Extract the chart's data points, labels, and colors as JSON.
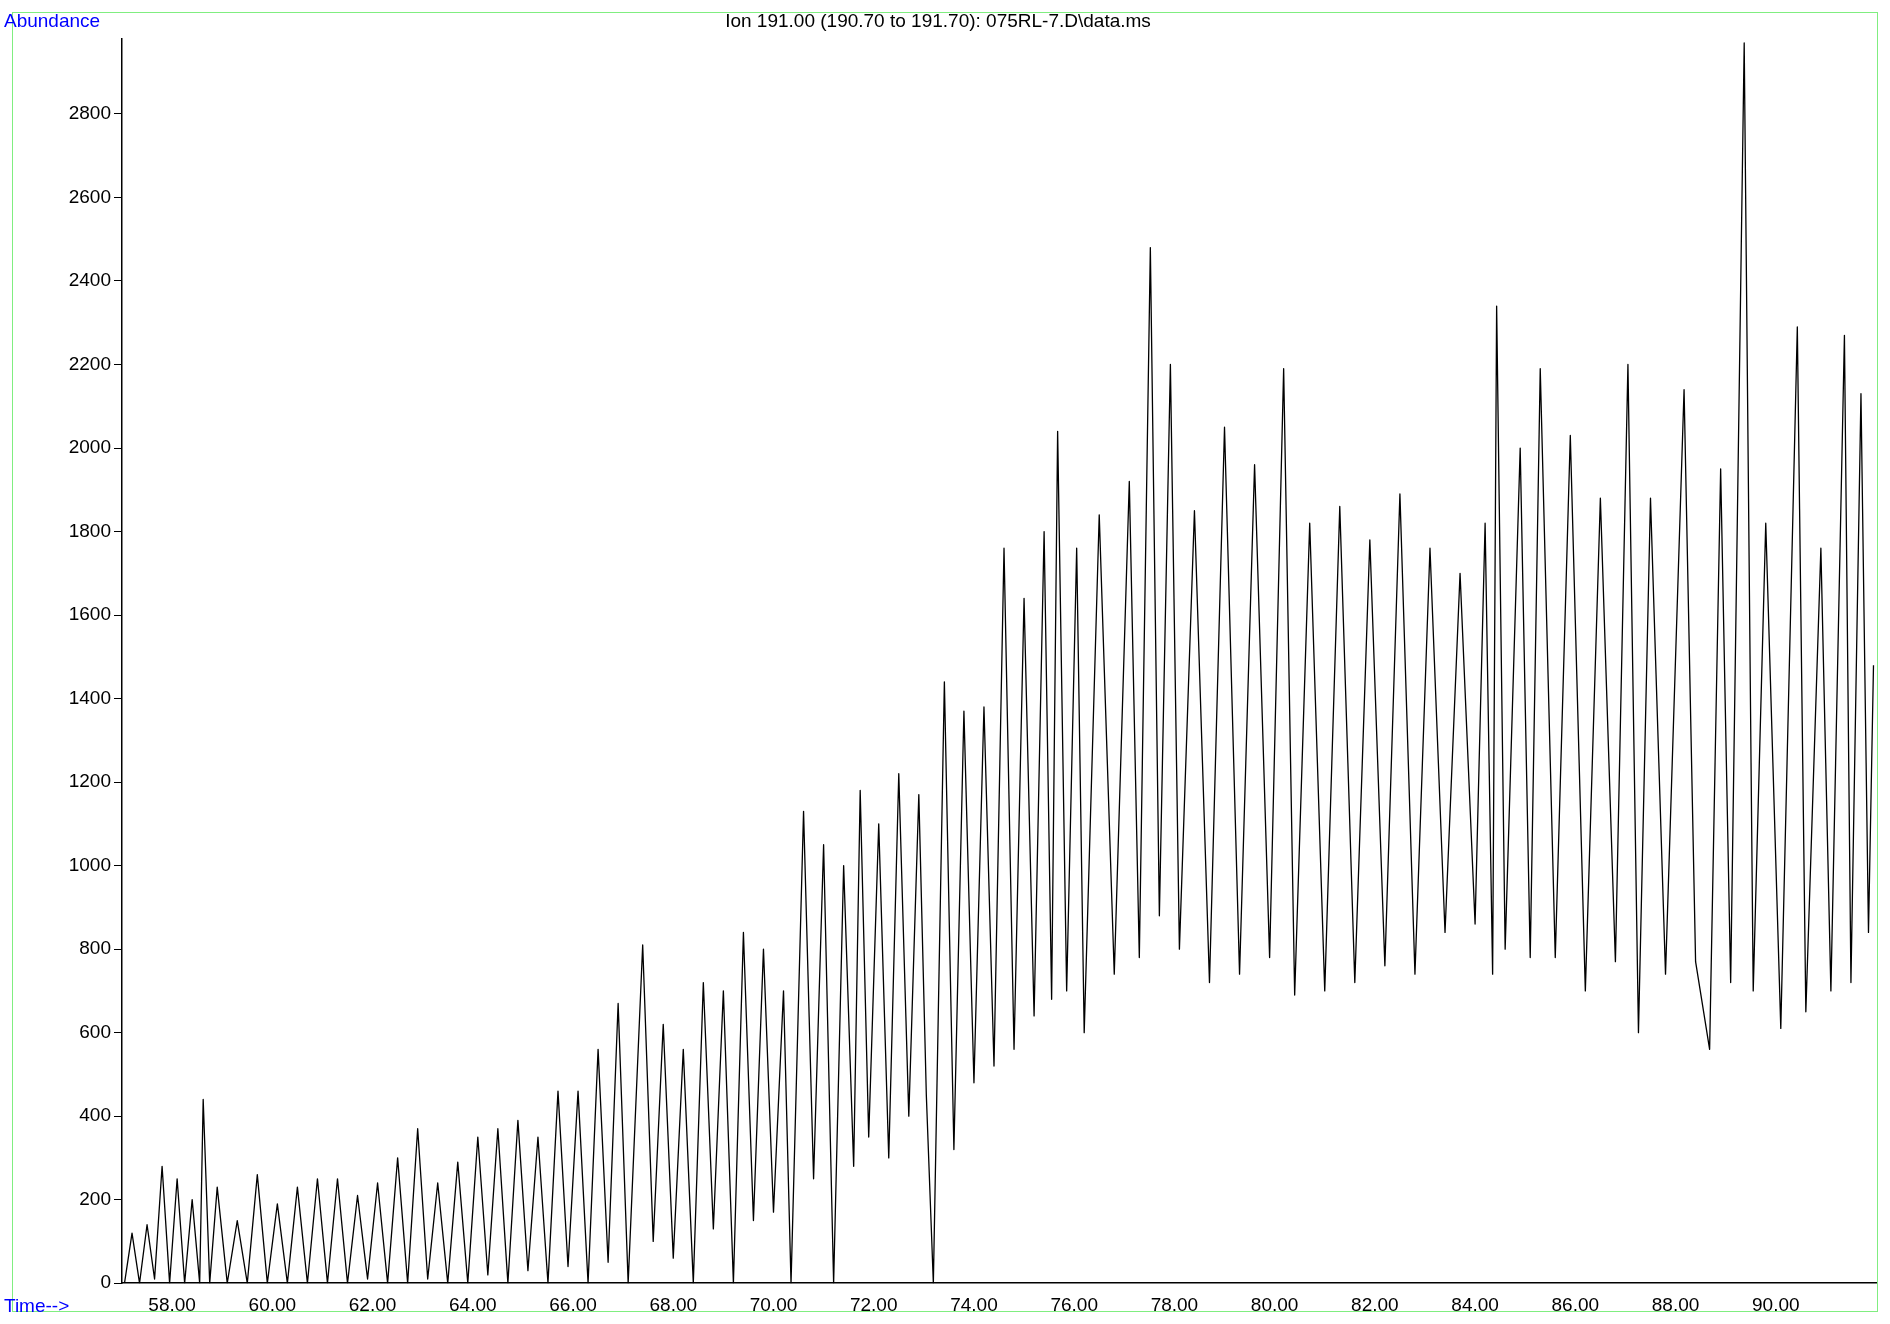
{
  "chart_data": {
    "type": "line",
    "title": "Ion 191.00 (190.70 to 191.70): 075RL-7.D\\data.ms",
    "xlabel": "Time-->",
    "ylabel": "Abundance",
    "xlim": [
      57.0,
      92.0
    ],
    "ylim": [
      0,
      2980
    ],
    "xticks": [
      {
        "value": 58,
        "label": "58.00"
      },
      {
        "value": 60,
        "label": "60.00"
      },
      {
        "value": 62,
        "label": "62.00"
      },
      {
        "value": 64,
        "label": "64.00"
      },
      {
        "value": 66,
        "label": "66.00"
      },
      {
        "value": 68,
        "label": "68.00"
      },
      {
        "value": 70,
        "label": "70.00"
      },
      {
        "value": 72,
        "label": "72.00"
      },
      {
        "value": 74,
        "label": "74.00"
      },
      {
        "value": 76,
        "label": "76.00"
      },
      {
        "value": 78,
        "label": "78.00"
      },
      {
        "value": 80,
        "label": "80.00"
      },
      {
        "value": 82,
        "label": "82.00"
      },
      {
        "value": 84,
        "label": "84.00"
      },
      {
        "value": 86,
        "label": "86.00"
      },
      {
        "value": 88,
        "label": "88.00"
      },
      {
        "value": 90,
        "label": "90.00"
      }
    ],
    "yticks": [
      0,
      200,
      400,
      600,
      800,
      1000,
      1200,
      1400,
      1600,
      1800,
      2000,
      2200,
      2400,
      2600,
      2800
    ],
    "grid": false,
    "legend": false,
    "marker": "none",
    "line_style": "solid",
    "series": [
      {
        "color": "#000000",
        "x": [
          57.05,
          57.2,
          57.35,
          57.5,
          57.65,
          57.8,
          57.95,
          58.1,
          58.25,
          58.4,
          58.55,
          58.62,
          58.75,
          58.9,
          59.1,
          59.3,
          59.5,
          59.7,
          59.9,
          60.1,
          60.3,
          60.5,
          60.7,
          60.9,
          61.1,
          61.3,
          61.5,
          61.7,
          61.9,
          62.1,
          62.3,
          62.5,
          62.7,
          62.9,
          63.1,
          63.3,
          63.5,
          63.7,
          63.9,
          64.1,
          64.3,
          64.5,
          64.7,
          64.9,
          65.1,
          65.3,
          65.5,
          65.7,
          65.9,
          66.1,
          66.3,
          66.5,
          66.7,
          66.9,
          67.1,
          67.39,
          67.6,
          67.8,
          68.0,
          68.2,
          68.4,
          68.6,
          68.8,
          69.0,
          69.2,
          69.4,
          69.6,
          69.8,
          70.0,
          70.2,
          70.35,
          70.6,
          70.8,
          71.0,
          71.2,
          71.4,
          71.6,
          71.73,
          71.9,
          72.1,
          72.3,
          72.5,
          72.7,
          72.9,
          73.05,
          73.19,
          73.41,
          73.6,
          73.8,
          74.0,
          74.2,
          74.4,
          74.6,
          74.8,
          75.0,
          75.2,
          75.4,
          75.55,
          75.67,
          75.85,
          76.05,
          76.2,
          76.5,
          76.8,
          77.1,
          77.3,
          77.52,
          77.7,
          77.92,
          78.1,
          78.4,
          78.7,
          79.0,
          79.3,
          79.6,
          79.9,
          80.18,
          80.4,
          80.7,
          81.0,
          81.3,
          81.6,
          81.9,
          82.2,
          82.5,
          82.8,
          83.1,
          83.4,
          83.7,
          84.0,
          84.2,
          84.35,
          84.43,
          84.6,
          84.9,
          85.1,
          85.3,
          85.6,
          85.9,
          86.2,
          86.5,
          86.8,
          87.05,
          87.26,
          87.5,
          87.8,
          88.17,
          88.4,
          88.68,
          88.9,
          89.1,
          89.37,
          89.55,
          89.8,
          90.1,
          90.43,
          90.6,
          90.9,
          91.1,
          91.37,
          91.5,
          91.7,
          91.85,
          91.95
        ],
        "values": [
          0,
          120,
          0,
          140,
          10,
          280,
          0,
          250,
          0,
          200,
          0,
          440,
          0,
          230,
          0,
          150,
          0,
          260,
          0,
          190,
          0,
          230,
          0,
          250,
          0,
          250,
          0,
          210,
          10,
          240,
          0,
          300,
          0,
          370,
          10,
          240,
          0,
          290,
          0,
          350,
          20,
          370,
          0,
          390,
          30,
          350,
          0,
          460,
          40,
          460,
          0,
          560,
          50,
          670,
          0,
          810,
          100,
          620,
          60,
          560,
          0,
          720,
          130,
          700,
          0,
          840,
          150,
          800,
          170,
          700,
          0,
          1130,
          250,
          1050,
          0,
          1000,
          280,
          1180,
          350,
          1100,
          300,
          1220,
          400,
          1170,
          450,
          0,
          1440,
          320,
          1370,
          480,
          1380,
          520,
          1760,
          560,
          1640,
          640,
          1800,
          680,
          2040,
          700,
          1760,
          600,
          1840,
          740,
          1920,
          780,
          2480,
          880,
          2200,
          800,
          1850,
          720,
          2050,
          740,
          1960,
          780,
          2190,
          690,
          1820,
          700,
          1860,
          720,
          1780,
          760,
          1890,
          740,
          1760,
          840,
          1700,
          860,
          1820,
          740,
          2340,
          800,
          2000,
          780,
          2190,
          780,
          2030,
          700,
          1880,
          770,
          2200,
          600,
          1880,
          740,
          2140,
          770,
          560,
          1950,
          720,
          2970,
          700,
          1820,
          610,
          2290,
          650,
          1760,
          700,
          2270,
          720,
          2130,
          840,
          1480
        ]
      }
    ]
  }
}
